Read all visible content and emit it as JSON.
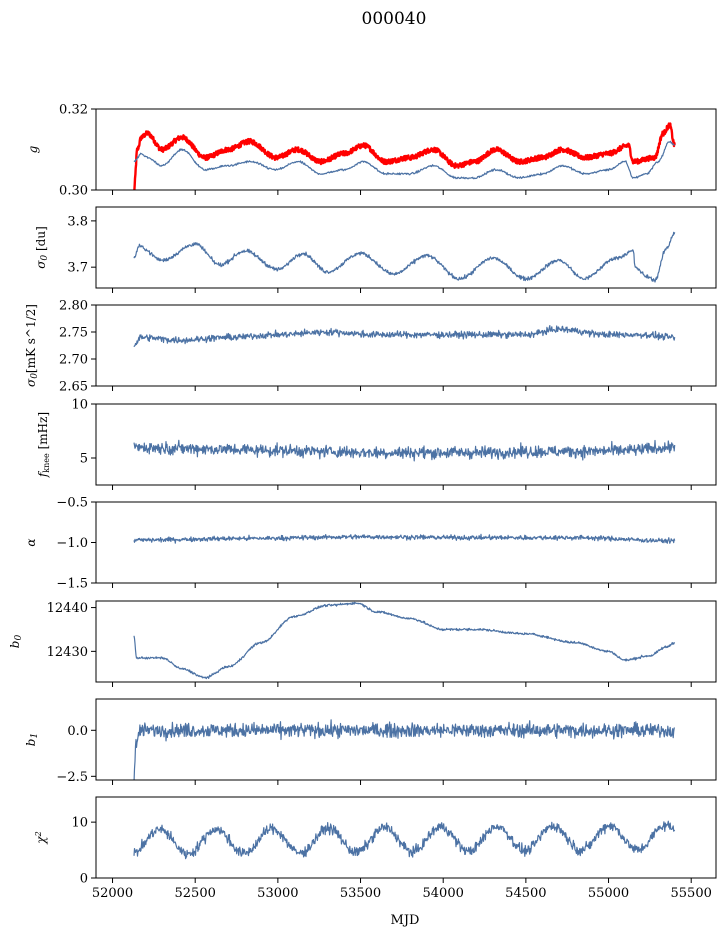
{
  "figure": {
    "title": "000040",
    "xlabel": "MJD"
  },
  "chart_data": {
    "type": "line",
    "xlim": [
      51900,
      55650
    ],
    "xticks": [
      52000,
      52500,
      53000,
      53500,
      54000,
      54500,
      55000,
      55500
    ],
    "x_range": [
      52130,
      55400
    ],
    "panels": [
      {
        "id": "g",
        "ylabel": "g",
        "ylim": [
          0.3,
          0.32
        ],
        "yticks": [
          0.3,
          0.32
        ],
        "ytick_labels": [
          "0.30",
          "0.32"
        ],
        "series": [
          {
            "color": "#ff0000",
            "kind": "gain_model",
            "knots": [
              [
                52130,
                0.3
              ],
              [
                52150,
                0.31
              ],
              [
                52175,
                0.313
              ],
              [
                52210,
                0.314
              ],
              [
                52300,
                0.31
              ],
              [
                52420,
                0.313
              ],
              [
                52560,
                0.308
              ],
              [
                52700,
                0.31
              ],
              [
                52830,
                0.312
              ],
              [
                52990,
                0.308
              ],
              [
                53120,
                0.31
              ],
              [
                53260,
                0.307
              ],
              [
                53400,
                0.309
              ],
              [
                53520,
                0.311
              ],
              [
                53650,
                0.307
              ],
              [
                53800,
                0.308
              ],
              [
                53940,
                0.31
              ],
              [
                54080,
                0.306
              ],
              [
                54190,
                0.307
              ],
              [
                54320,
                0.31
              ],
              [
                54460,
                0.307
              ],
              [
                54600,
                0.308
              ],
              [
                54720,
                0.31
              ],
              [
                54860,
                0.308
              ],
              [
                55000,
                0.309
              ],
              [
                55120,
                0.311
              ],
              [
                55150,
                0.307
              ],
              [
                55280,
                0.308
              ],
              [
                55330,
                0.314
              ],
              [
                55370,
                0.316
              ],
              [
                55400,
                0.311
              ]
            ]
          },
          {
            "color": "#4c72a4",
            "kind": "gain_data",
            "knots": [
              [
                52130,
                0.307
              ],
              [
                52175,
                0.309
              ],
              [
                52210,
                0.308
              ],
              [
                52300,
                0.306
              ],
              [
                52420,
                0.31
              ],
              [
                52560,
                0.305
              ],
              [
                52700,
                0.306
              ],
              [
                52830,
                0.307
              ],
              [
                52990,
                0.305
              ],
              [
                53120,
                0.307
              ],
              [
                53260,
                0.304
              ],
              [
                53400,
                0.305
              ],
              [
                53520,
                0.307
              ],
              [
                53650,
                0.304
              ],
              [
                53800,
                0.304
              ],
              [
                53940,
                0.306
              ],
              [
                54080,
                0.303
              ],
              [
                54190,
                0.303
              ],
              [
                54320,
                0.305
              ],
              [
                54460,
                0.303
              ],
              [
                54600,
                0.304
              ],
              [
                54720,
                0.306
              ],
              [
                54860,
                0.304
              ],
              [
                55000,
                0.305
              ],
              [
                55100,
                0.307
              ],
              [
                55150,
                0.303
              ],
              [
                55230,
                0.304
              ],
              [
                55300,
                0.307
              ],
              [
                55370,
                0.312
              ],
              [
                55400,
                0.311
              ]
            ]
          }
        ]
      },
      {
        "id": "sigma0_du",
        "ylabel": "σ0 [du]",
        "ylim": [
          3.655,
          3.83
        ],
        "yticks": [
          3.7,
          3.8
        ],
        "ytick_labels": [
          "3.7",
          "3.8"
        ],
        "series": [
          {
            "color": "#4c72a4",
            "noise": 0.004,
            "knots": [
              [
                52130,
                3.72
              ],
              [
                52160,
                3.745
              ],
              [
                52300,
                3.715
              ],
              [
                52500,
                3.75
              ],
              [
                52650,
                3.705
              ],
              [
                52800,
                3.735
              ],
              [
                53000,
                3.695
              ],
              [
                53150,
                3.73
              ],
              [
                53300,
                3.69
              ],
              [
                53500,
                3.73
              ],
              [
                53700,
                3.685
              ],
              [
                53900,
                3.725
              ],
              [
                54100,
                3.675
              ],
              [
                54300,
                3.72
              ],
              [
                54500,
                3.675
              ],
              [
                54700,
                3.715
              ],
              [
                54850,
                3.675
              ],
              [
                55050,
                3.72
              ],
              [
                55150,
                3.735
              ],
              [
                55160,
                3.7
              ],
              [
                55230,
                3.68
              ],
              [
                55280,
                3.672
              ],
              [
                55350,
                3.74
              ],
              [
                55400,
                3.775
              ]
            ]
          }
        ]
      },
      {
        "id": "sigma0_mk",
        "ylabel": "σ0[mK s^1/2]",
        "ylim": [
          2.65,
          2.8
        ],
        "yticks": [
          2.65,
          2.7,
          2.75,
          2.8
        ],
        "ytick_labels": [
          "2.65",
          "2.70",
          "2.75",
          "2.80"
        ],
        "series": [
          {
            "color": "#4c72a4",
            "noise": 0.006,
            "knots": [
              [
                52130,
                2.725
              ],
              [
                52170,
                2.74
              ],
              [
                52400,
                2.735
              ],
              [
                52700,
                2.74
              ],
              [
                53000,
                2.745
              ],
              [
                53300,
                2.75
              ],
              [
                53600,
                2.745
              ],
              [
                53900,
                2.745
              ],
              [
                54200,
                2.745
              ],
              [
                54500,
                2.745
              ],
              [
                54700,
                2.755
              ],
              [
                55000,
                2.745
              ],
              [
                55200,
                2.745
              ],
              [
                55400,
                2.74
              ]
            ]
          }
        ]
      },
      {
        "id": "fknee",
        "ylabel": "fknee [mHz]",
        "ylim": [
          2.5,
          10
        ],
        "yticks": [
          5,
          10
        ],
        "ytick_labels": [
          "5",
          "10"
        ],
        "series": [
          {
            "color": "#4c72a4",
            "noise": 0.55,
            "knots": [
              [
                52130,
                6.0
              ],
              [
                52400,
                5.9
              ],
              [
                52700,
                5.8
              ],
              [
                53000,
                5.7
              ],
              [
                53300,
                5.6
              ],
              [
                53600,
                5.5
              ],
              [
                53900,
                5.5
              ],
              [
                54200,
                5.5
              ],
              [
                54500,
                5.6
              ],
              [
                54800,
                5.6
              ],
              [
                55100,
                5.7
              ],
              [
                55400,
                6.0
              ]
            ]
          }
        ]
      },
      {
        "id": "alpha",
        "ylabel": "α",
        "ylim": [
          -1.5,
          -0.5
        ],
        "yticks": [
          -1.5,
          -1.0,
          -0.5
        ],
        "ytick_labels": [
          "−1.5",
          "−1.0",
          "−0.5"
        ],
        "series": [
          {
            "color": "#4c72a4",
            "noise": 0.028,
            "knots": [
              [
                52130,
                -0.97
              ],
              [
                52800,
                -0.95
              ],
              [
                53500,
                -0.93
              ],
              [
                54200,
                -0.94
              ],
              [
                54800,
                -0.94
              ],
              [
                55400,
                -0.98
              ]
            ]
          }
        ]
      },
      {
        "id": "b0",
        "ylabel": "b0",
        "ylim": [
          12423,
          12441.5
        ],
        "yticks": [
          12430,
          12440
        ],
        "ytick_labels": [
          "12430",
          "12440"
        ],
        "series": [
          {
            "color": "#4c72a4",
            "noise": 0.25,
            "knots": [
              [
                52130,
                12433.5
              ],
              [
                52145,
                12428.5
              ],
              [
                52300,
                12428.5
              ],
              [
                52420,
                12426
              ],
              [
                52560,
                12424
              ],
              [
                52700,
                12426.5
              ],
              [
                52900,
                12432
              ],
              [
                53100,
                12438
              ],
              [
                53300,
                12440.5
              ],
              [
                53480,
                12441
              ],
              [
                53600,
                12439
              ],
              [
                53800,
                12437.5
              ],
              [
                54000,
                12435
              ],
              [
                54200,
                12435
              ],
              [
                54500,
                12434
              ],
              [
                54800,
                12432
              ],
              [
                55000,
                12430
              ],
              [
                55100,
                12428
              ],
              [
                55250,
                12429
              ],
              [
                55350,
                12431
              ],
              [
                55400,
                12432
              ]
            ]
          }
        ]
      },
      {
        "id": "b1",
        "ylabel": "b1",
        "ylim": [
          -2.7,
          1.7
        ],
        "yticks": [
          -2.5,
          0.0
        ],
        "ytick_labels": [
          "−2.5",
          "0.0"
        ],
        "series": [
          {
            "color": "#4c72a4",
            "noise": 0.38,
            "knots": [
              [
                52130,
                -2.5
              ],
              [
                52140,
                -0.8
              ],
              [
                52170,
                0.0
              ],
              [
                53000,
                0.0
              ],
              [
                54000,
                0.0
              ],
              [
                55400,
                0.0
              ]
            ]
          }
        ]
      },
      {
        "id": "chi2",
        "ylabel": "χ2",
        "ylim": [
          0,
          14.5
        ],
        "yticks": [
          0,
          10
        ],
        "ytick_labels": [
          "0",
          "10"
        ],
        "series": [
          {
            "color": "#4c72a4",
            "noise": 0.9,
            "oscillation": {
              "center": 6.5,
              "amplitude": 2.2,
              "period": 340,
              "phase": 52200
            },
            "knots": [
              [
                52130,
                5
              ],
              [
                55400,
                7.5
              ]
            ]
          }
        ]
      }
    ]
  }
}
